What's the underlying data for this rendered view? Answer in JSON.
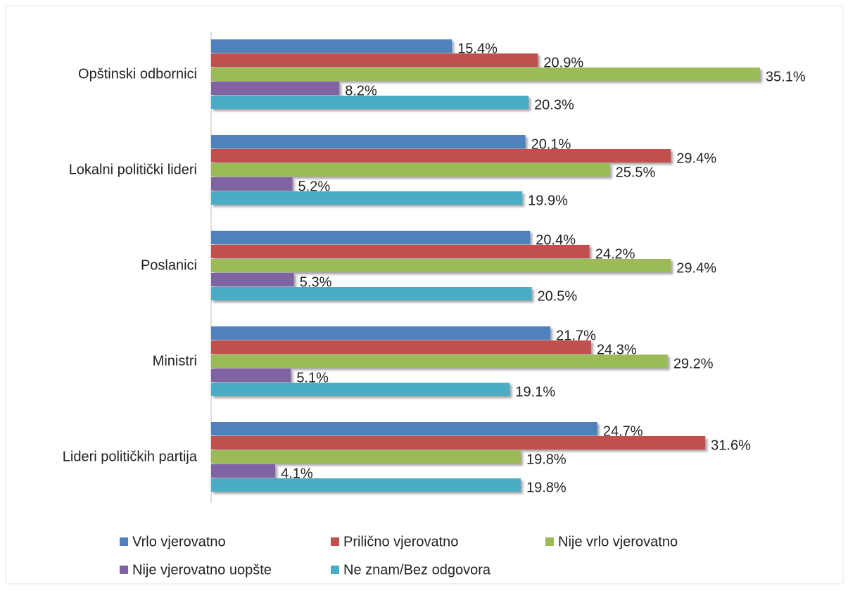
{
  "chart_data": {
    "type": "bar",
    "orientation": "horizontal",
    "categories": [
      "Opštinski odbornici",
      "Lokalni politički lideri",
      "Poslanici",
      "Ministri",
      "Lideri političkih partija"
    ],
    "series": [
      {
        "name": "Vrlo vjerovatno",
        "color": "#4f81bd",
        "values": [
          15.4,
          20.1,
          20.4,
          21.7,
          24.7
        ],
        "value_labels": [
          "15.4%",
          "20.1%",
          "20.4%",
          "21.7%",
          "24.7%"
        ]
      },
      {
        "name": "Prilično vjerovatno",
        "color": "#c0504d",
        "values": [
          20.9,
          29.4,
          24.2,
          24.3,
          31.6
        ],
        "value_labels": [
          "20.9%",
          "29.4%",
          "24.2%",
          "24.3%",
          "31.6%"
        ]
      },
      {
        "name": "Nije vrlo vjerovatno",
        "color": "#9bbb59",
        "values": [
          35.1,
          25.5,
          29.4,
          29.2,
          19.8
        ],
        "value_labels": [
          "35.1%",
          "25.5%",
          "29.4%",
          "29.2%",
          "19.8%"
        ]
      },
      {
        "name": "Nije vjerovatno uopšte",
        "color": "#8064a2",
        "values": [
          8.2,
          5.2,
          5.3,
          5.1,
          4.1
        ],
        "value_labels": [
          "8.2%",
          "5.2%",
          "5.3%",
          "5.1%",
          "4.1%"
        ]
      },
      {
        "name": "Ne znam/Bez odgovora",
        "color": "#4bacc6",
        "values": [
          20.3,
          19.9,
          20.5,
          19.1,
          19.8
        ],
        "value_labels": [
          "20.3%",
          "19.9%",
          "20.5%",
          "19.1%",
          "19.8%"
        ]
      }
    ],
    "legend": "bottom"
  }
}
